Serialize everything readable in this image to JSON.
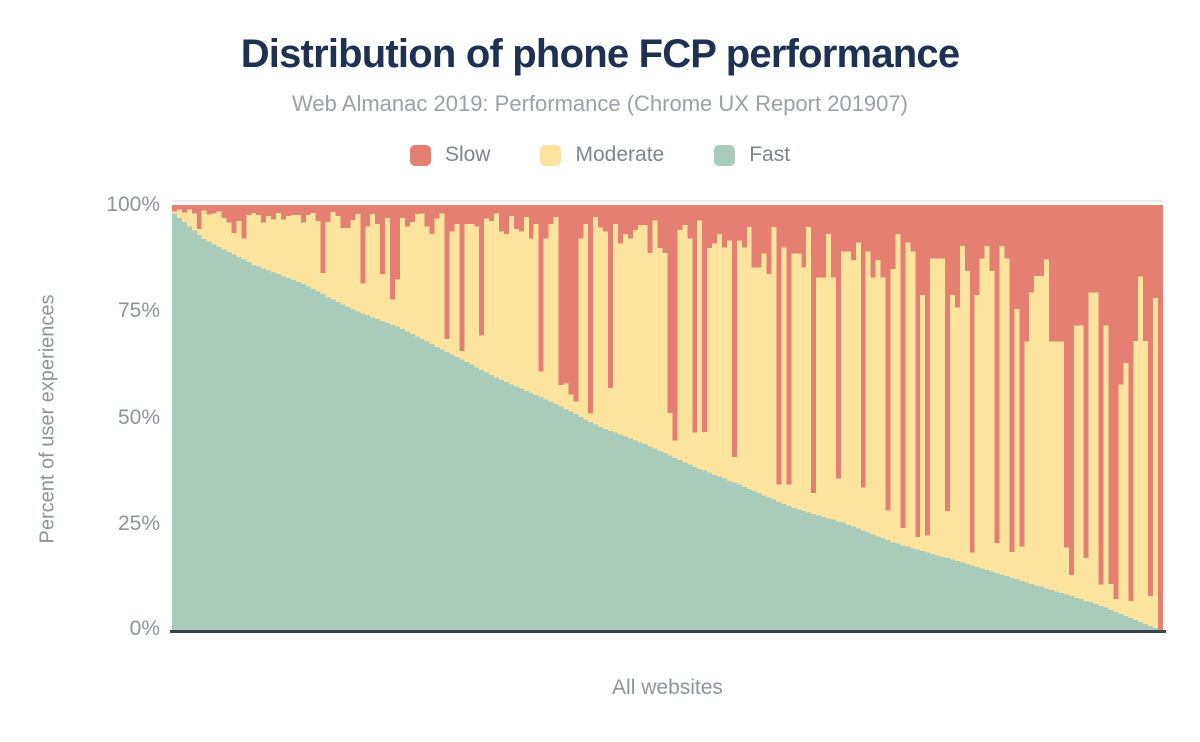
{
  "header": {
    "title": "Distribution of phone FCP performance",
    "subtitle": "Web Almanac 2019: Performance (Chrome UX Report 201907)"
  },
  "legend": {
    "items": [
      {
        "label": "Slow",
        "color": "#e57f72"
      },
      {
        "label": "Moderate",
        "color": "#fde49e"
      },
      {
        "label": "Fast",
        "color": "#a9ccba"
      }
    ]
  },
  "colors": {
    "slow": "#e57f72",
    "moderate": "#fde49e",
    "fast": "#a9ccba",
    "title_text": "#1e3151",
    "muted_text": "#8d949b",
    "axis_line": "#39424e",
    "gridline": "#e8eaec",
    "background": "#ffffff"
  },
  "chart_data": {
    "type": "bar",
    "stacked": true,
    "stack_total": 100,
    "title": "Distribution of phone FCP performance",
    "subtitle": "Web Almanac 2019: Performance (Chrome UX Report 201907)",
    "xlabel": "All websites",
    "ylabel": "Percent of user experiences",
    "ylim": [
      0,
      100
    ],
    "ytick_labels": [
      "100%",
      "75%",
      "50%",
      "25%",
      "0%"
    ],
    "grid": "top boundary line only",
    "legend_position": "top",
    "series_order_bottom_to_top": [
      "Fast",
      "Moderate",
      "Slow"
    ],
    "series": [
      {
        "name": "Fast",
        "color": "#a9ccba",
        "values": [
          98,
          97,
          96,
          95,
          94,
          93,
          92,
          91.4,
          90.8,
          90.2,
          89.6,
          89,
          88.4,
          87.8,
          87.2,
          86.6,
          86,
          85.6,
          85.1,
          84.7,
          84.2,
          83.8,
          83.3,
          82.9,
          82.4,
          82,
          81.5,
          80.9,
          80.3,
          79.7,
          79.1,
          78.5,
          77.9,
          77.3,
          76.7,
          76.1,
          75.5,
          75.1,
          74.6,
          74.2,
          73.7,
          73.3,
          72.8,
          72.4,
          71.9,
          71.5,
          71,
          70.4,
          69.8,
          69.2,
          68.6,
          68,
          67.4,
          66.8,
          66.2,
          65.6,
          65,
          64.4,
          63.8,
          63.2,
          62.6,
          62,
          61.4,
          60.8,
          60.2,
          59.6,
          59,
          58.5,
          58,
          57.5,
          57,
          56.5,
          56,
          55.5,
          55,
          54.5,
          54,
          53.4,
          52.8,
          52.2,
          51.6,
          51,
          50.4,
          49.8,
          49.2,
          48.6,
          48,
          47.6,
          47.1,
          46.7,
          46.2,
          45.8,
          45.3,
          44.9,
          44.4,
          44,
          43.5,
          43,
          42.4,
          41.9,
          41.3,
          40.8,
          40.3,
          39.7,
          39.2,
          38.7,
          38.2,
          37.8,
          37.3,
          36.8,
          36.4,
          35.9,
          35.4,
          35,
          34.5,
          34,
          33.5,
          33,
          32.5,
          32,
          31.5,
          31,
          30.5,
          30,
          29.5,
          29,
          28.7,
          28.3,
          28,
          27.6,
          27.3,
          26.9,
          26.6,
          26.3,
          25.9,
          25.6,
          25.1,
          24.7,
          24.2,
          23.8,
          23.3,
          22.8,
          22.4,
          21.9,
          21.5,
          21,
          20.7,
          20.3,
          20,
          19.6,
          19.3,
          19,
          18.6,
          18.3,
          17.9,
          17.6,
          17.3,
          17,
          16.6,
          16.3,
          15.9,
          15.6,
          15.2,
          14.9,
          14.5,
          14.2,
          13.8,
          13.4,
          13.1,
          12.7,
          12.4,
          12,
          11.6,
          11.3,
          10.9,
          10.6,
          10.2,
          9.8,
          9.5,
          9.1,
          8.8,
          8.4,
          8,
          7.7,
          7.3,
          7,
          6.6,
          6.1,
          5.7,
          5.2,
          4.7,
          4.2,
          3.8,
          3.3,
          2.8,
          2.4,
          1.9,
          1.4,
          0.9,
          0
        ]
      },
      {
        "name": "Moderate",
        "color": "#fde49e",
        "values": [
          0.5,
          2,
          2.2,
          4,
          4,
          1.4,
          6.7,
          6.4,
          7.2,
          8.3,
          7.4,
          6.9,
          5,
          8.5,
          5,
          11.1,
          12.1,
          12.1,
          10.8,
          12.7,
          12.4,
          14.3,
          13.3,
          14.5,
          15.3,
          15.7,
          14.4,
          16.8,
          17.8,
          16.6,
          5,
          17.5,
          20.5,
          20.1,
          17.9,
          18.5,
          21,
          22.8,
          7,
          20.8,
          24.2,
          22.2,
          11,
          24.6,
          6,
          11,
          26,
          24.6,
          26.2,
          28.7,
          29.4,
          27,
          25.8,
          30,
          31.8,
          3,
          28.8,
          31.2,
          2,
          32.4,
          33,
          33,
          8,
          36,
          36,
          38.4,
          34.8,
          34.7,
          39.4,
          36.9,
          36.8,
          40.7,
          36.2,
          40,
          6,
          37.7,
          41.5,
          43.8,
          5,
          6,
          4,
          3,
          41.8,
          45.7,
          2,
          48.6,
          46.7,
          46.2,
          10,
          48.8,
          44.8,
          47.4,
          46.8,
          49.3,
          50.9,
          51.3,
          45.3,
          53.4,
          47.5,
          46.9,
          10,
          4,
          53.9,
          55.6,
          52.9,
          8,
          58.2,
          9,
          52.6,
          54.2,
          56.8,
          54.2,
          56.3,
          6,
          57.2,
          56.1,
          61.3,
          52.4,
          52.9,
          56.6,
          52.4,
          63.8,
          4,
          60.1,
          5,
          59.6,
          59.9,
          57.1,
          66.8,
          5,
          55.7,
          56.1,
          66.6,
          56.7,
          10,
          63.5,
          64,
          62.4,
          67,
          10,
          65.8,
          60.2,
          64.7,
          61.1,
          7,
          64,
          72.5,
          4,
          71.2,
          69.5,
          3,
          59.9,
          4,
          69.2,
          69.6,
          69.9,
          11,
          61.9,
          59.4,
          74.1,
          68.7,
          3,
          63.7,
          72.6,
          75.9,
          70.4,
          7,
          77,
          74.4,
          6,
          63.3,
          8,
          56.4,
          68.2,
          72.5,
          72.8,
          77,
          58.2,
          58.5,
          58.9,
          11,
          5,
          63.8,
          64.1,
          10,
          72.5,
          72.9,
          5,
          66.1,
          6,
          3,
          53.8,
          59.2,
          4,
          65.3,
          80.8,
          66.2,
          7,
          77.3,
          0
        ]
      },
      {
        "name": "Slow",
        "color": "#e57f72",
        "values": [
          1.5,
          1,
          1.8,
          1,
          2,
          5.6,
          1.3,
          2.2,
          2,
          1.5,
          3,
          4.1,
          6.6,
          3.7,
          7.8,
          2.3,
          1.9,
          2.3,
          4.1,
          2.6,
          3.4,
          1.9,
          3.4,
          2.6,
          2.3,
          2.3,
          4.1,
          2.3,
          1.9,
          3.7,
          15.9,
          4,
          1.6,
          2.6,
          5.4,
          5.4,
          3.5,
          2.1,
          18.4,
          5,
          2.1,
          4.5,
          16.2,
          3,
          22.1,
          17.5,
          3,
          5,
          4,
          2.1,
          2,
          5,
          6.8,
          3.2,
          2,
          31.4,
          6.2,
          4.4,
          34.2,
          4.4,
          4.4,
          5,
          30.6,
          3.2,
          3.8,
          2,
          6.2,
          6.8,
          2.6,
          5.6,
          6.2,
          2.8,
          7.8,
          4.5,
          39,
          7.8,
          4.5,
          2.8,
          42.2,
          41.8,
          44.4,
          46,
          7.8,
          4.5,
          48.8,
          2.8,
          5.3,
          6.2,
          42.9,
          4.5,
          9,
          6.8,
          7.9,
          5.8,
          4.7,
          4.7,
          11.2,
          3.6,
          10.1,
          11.2,
          48.7,
          55.2,
          5.8,
          4.7,
          7.9,
          53.3,
          3.6,
          53.2,
          10.1,
          9,
          6.8,
          9.9,
          8.3,
          59,
          8.3,
          9.9,
          5.2,
          14.6,
          14.6,
          11.4,
          16.1,
          5.2,
          65.5,
          9.9,
          65.5,
          11.4,
          11.4,
          14.6,
          5.2,
          67.4,
          17,
          17,
          6.8,
          17,
          64.1,
          10.9,
          10.9,
          12.9,
          8.8,
          66.2,
          10.9,
          17,
          12.9,
          17,
          71.5,
          15,
          6.8,
          75.7,
          8.8,
          10.9,
          77.7,
          21.1,
          77.4,
          12.5,
          12.5,
          12.5,
          71.7,
          21.1,
          24,
          9.6,
          15.4,
          81.4,
          21.1,
          12.5,
          9.6,
          15.4,
          79.2,
          9.6,
          12.5,
          81.3,
          24.3,
          80,
          32,
          20.5,
          16.6,
          16.6,
          12.8,
          32,
          32,
          32,
          80.2,
          86.6,
          28.2,
          28.2,
          82.7,
          20.5,
          20.5,
          88.9,
          28.2,
          88.8,
          92.3,
          42,
          37,
          92.7,
          31.9,
          16.8,
          31.9,
          91.6,
          21.8,
          100
        ]
      }
    ]
  }
}
